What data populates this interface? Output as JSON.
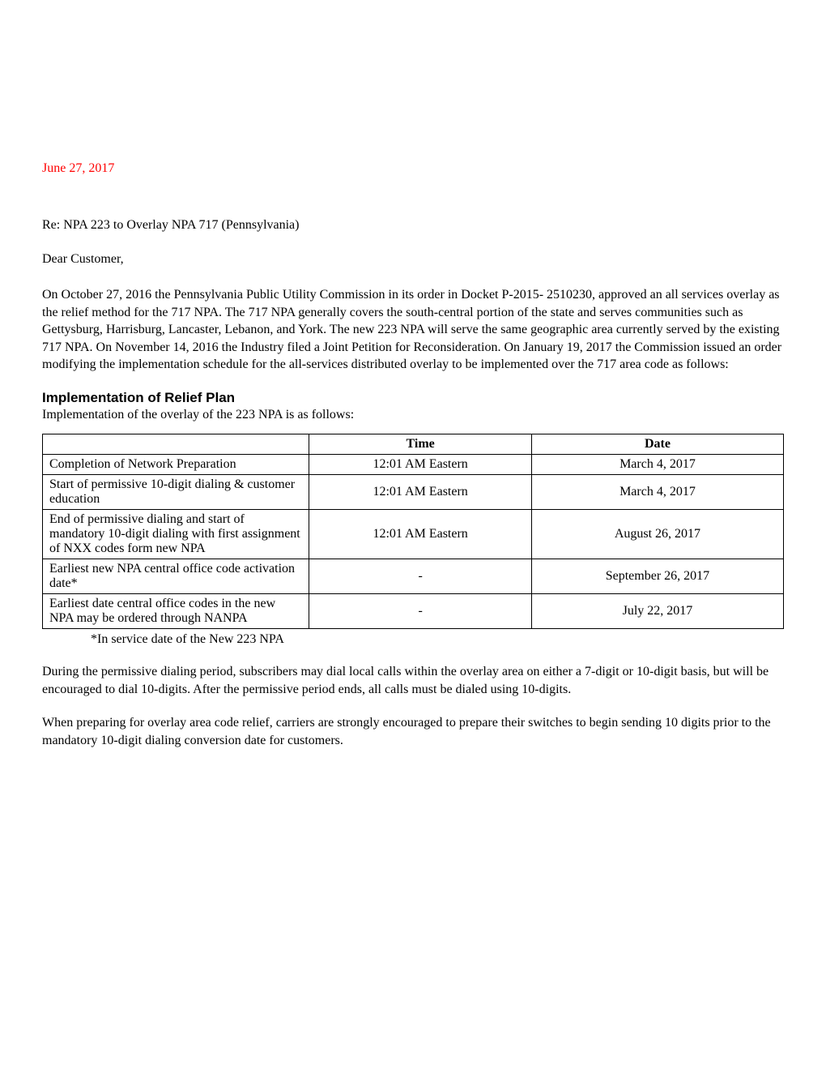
{
  "letter": {
    "date": "June 27, 2017",
    "subject": "Re: NPA 223 to Overlay NPA 717 (Pennsylvania)",
    "salutation": "Dear Customer,",
    "intro_paragraph": "On October 27, 2016 the Pennsylvania Public Utility Commission in its order in Docket P-2015- 2510230, approved an all services overlay as the relief method for the 717 NPA. The 717 NPA generally covers the south-central portion of the state and serves communities such as Gettysburg, Harrisburg, Lancaster, Lebanon, and York. The new 223 NPA will serve the same geographic area currently served by the existing 717 NPA. On November 14, 2016 the Industry filed a Joint Petition for Reconsideration. On January 19, 2017 the Commission issued an order modifying the implementation schedule for the all-services distributed overlay to be implemented over the 717 area code as follows:",
    "section_heading": "Implementation of Relief Plan",
    "section_intro": "Implementation of the overlay of the 223 NPA is as follows:",
    "footnote": "*In service date of the New 223 NPA",
    "permissive_paragraph": "During the permissive dialing period, subscribers may dial local calls within the overlay area on either a 7-digit or 10-digit basis, but will be encouraged to dial 10-digits. After the permissive period ends, all calls must be dialed using 10-digits.",
    "preparing_paragraph": "When preparing for overlay area code relief, carriers are strongly encouraged to prepare their switches to begin sending 10 digits prior to the mandatory 10-digit dialing conversion date for customers."
  },
  "table": {
    "headers": {
      "col1": "",
      "col2": "Time",
      "col3": "Date"
    },
    "rows": [
      {
        "label": "Completion of Network Preparation",
        "time": "12:01 AM Eastern",
        "date": "March 4, 2017"
      },
      {
        "label": "Start of permissive 10-digit dialing & customer education",
        "time": "12:01 AM Eastern",
        "date": "March 4, 2017"
      },
      {
        "label": "End of permissive dialing and start of mandatory 10-digit dialing with first assignment of NXX codes form new NPA",
        "time": "12:01 AM Eastern",
        "date": "August 26,  2017"
      },
      {
        "label": "Earliest new NPA central office code activation date*",
        "time": "-",
        "date": "September 26, 2017"
      },
      {
        "label": "Earliest date central office codes in the new NPA may be ordered through NANPA",
        "time": "-",
        "date": "July 22, 2017"
      }
    ]
  },
  "styling": {
    "date_color": "#ff0000",
    "body_color": "#000000",
    "background_color": "#ffffff",
    "body_font": "Times New Roman",
    "heading_font": "Arial",
    "body_fontsize": 16,
    "heading_fontsize": 17,
    "border_color": "#000000",
    "col_widths_pct": [
      36,
      30,
      34
    ]
  }
}
